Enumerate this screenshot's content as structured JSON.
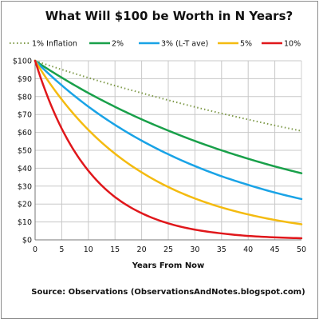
{
  "chart_data": {
    "type": "line",
    "title": "What Will $100 be Worth in N Years?",
    "xlabel": "Years From Now",
    "ylabel": "",
    "source": "Source: Observations (ObservationsAndNotes.blogspot.com)",
    "xlim": [
      0,
      50
    ],
    "ylim": [
      0,
      100
    ],
    "x_ticks": [
      0,
      5,
      10,
      15,
      20,
      25,
      30,
      35,
      40,
      45,
      50
    ],
    "y_ticks": [
      {
        "value": 0,
        "label": "$0"
      },
      {
        "value": 10,
        "label": "$10"
      },
      {
        "value": 20,
        "label": "$20"
      },
      {
        "value": 30,
        "label": "$30"
      },
      {
        "value": 40,
        "label": "$40"
      },
      {
        "value": 50,
        "label": "$50"
      },
      {
        "value": 60,
        "label": "$60"
      },
      {
        "value": 70,
        "label": "$70"
      },
      {
        "value": 80,
        "label": "$80"
      },
      {
        "value": 90,
        "label": "$90"
      },
      {
        "value": 100,
        "label": "$100"
      }
    ],
    "grid": true,
    "legend_position": "top",
    "x": [
      0,
      5,
      10,
      15,
      20,
      25,
      30,
      35,
      40,
      45,
      50
    ],
    "series": [
      {
        "name": "1% Inflation",
        "color": "#7f9a4a",
        "dashed": true,
        "values": [
          100,
          95.1,
          90.5,
          86.1,
          82.0,
          78.0,
          74.2,
          70.6,
          67.2,
          63.9,
          60.8
        ]
      },
      {
        "name": "2%",
        "color": "#19a04a",
        "dashed": false,
        "values": [
          100,
          90.6,
          82.0,
          74.3,
          67.3,
          61.0,
          55.2,
          50.0,
          45.3,
          41.0,
          37.2
        ]
      },
      {
        "name": "3% (L-T ave)",
        "color": "#19a3e6",
        "dashed": false,
        "values": [
          100,
          86.3,
          74.4,
          64.2,
          55.4,
          47.8,
          41.2,
          35.5,
          30.7,
          26.4,
          22.8
        ]
      },
      {
        "name": "5%",
        "color": "#f4bb10",
        "dashed": false,
        "values": [
          100,
          78.4,
          61.4,
          48.1,
          37.7,
          29.5,
          23.1,
          18.1,
          14.2,
          11.1,
          8.7
        ]
      },
      {
        "name": "10%",
        "color": "#e0171b",
        "dashed": false,
        "values": [
          100,
          62.1,
          38.6,
          23.9,
          14.9,
          9.2,
          5.7,
          3.6,
          2.2,
          1.4,
          0.9
        ]
      }
    ]
  }
}
